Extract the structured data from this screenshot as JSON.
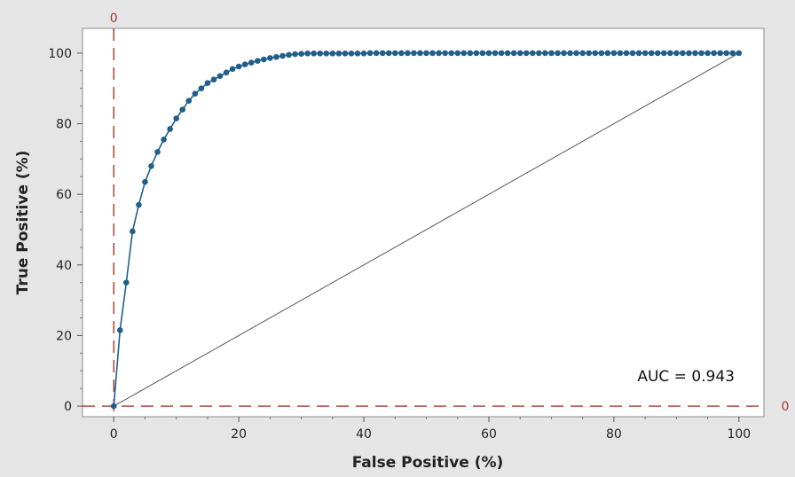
{
  "chart_data": {
    "type": "line",
    "title": "",
    "xlabel": "False Positive (%)",
    "ylabel": "True Positive (%)",
    "xlim": [
      -5,
      104
    ],
    "ylim": [
      -3,
      107
    ],
    "x_ticks": [
      0,
      20,
      40,
      60,
      80,
      100
    ],
    "y_ticks": [
      0,
      20,
      40,
      60,
      80,
      100
    ],
    "x_tick_labels": [
      "0",
      "20",
      "40",
      "60",
      "80",
      "100"
    ],
    "y_tick_labels": [
      "0",
      "20",
      "40",
      "60",
      "80",
      "100"
    ],
    "grid": false,
    "series": [
      {
        "color": "#1f5f8b",
        "style": "line+markers",
        "x": [
          0,
          1,
          2,
          3,
          4,
          5,
          6,
          7,
          8,
          9,
          10,
          11,
          12,
          13,
          14,
          15,
          16,
          17,
          18,
          19,
          20,
          21,
          22,
          23,
          24,
          25,
          26,
          27,
          28,
          29,
          30,
          31,
          32,
          33,
          34,
          35,
          36,
          37,
          38,
          39,
          40,
          41,
          42,
          43,
          44,
          45,
          46,
          47,
          48,
          49,
          50,
          51,
          52,
          53,
          54,
          55,
          56,
          57,
          58,
          59,
          60,
          61,
          62,
          63,
          64,
          65,
          66,
          67,
          68,
          69,
          70,
          71,
          72,
          73,
          74,
          75,
          76,
          77,
          78,
          79,
          80,
          81,
          82,
          83,
          84,
          85,
          86,
          87,
          88,
          89,
          90,
          91,
          92,
          93,
          94,
          95,
          96,
          97,
          98,
          99,
          100
        ],
        "y": [
          0,
          21.5,
          35,
          49.5,
          57,
          63.5,
          68,
          72,
          75.5,
          78.5,
          81.5,
          84,
          86.5,
          88.5,
          90,
          91.5,
          92.5,
          93.5,
          94.5,
          95.5,
          96.2,
          96.8,
          97.3,
          97.8,
          98.2,
          98.6,
          98.9,
          99.2,
          99.5,
          99.7,
          99.8,
          99.9,
          99.9,
          99.9,
          99.9,
          99.9,
          99.9,
          99.9,
          99.9,
          99.9,
          99.9,
          100,
          100,
          100,
          100,
          100,
          100,
          100,
          100,
          100,
          100,
          100,
          100,
          100,
          100,
          100,
          100,
          100,
          100,
          100,
          100,
          100,
          100,
          100,
          100,
          100,
          100,
          100,
          100,
          100,
          100,
          100,
          100,
          100,
          100,
          100,
          100,
          100,
          100,
          100,
          100,
          100,
          100,
          100,
          100,
          100,
          100,
          100,
          100,
          100,
          100,
          100,
          100,
          100,
          100,
          100,
          100,
          100,
          100,
          100,
          100
        ]
      }
    ],
    "diagonal": {
      "x": [
        0,
        100
      ],
      "y": [
        0,
        100
      ],
      "color": "#555555"
    },
    "reference_lines": [
      {
        "orientation": "vertical",
        "value": 0,
        "label": "0",
        "color": "#a33a2a"
      },
      {
        "orientation": "horizontal",
        "value": 0,
        "label": "0",
        "color": "#a33a2a"
      }
    ],
    "annotation": {
      "text": "AUC = 0.943"
    },
    "colors": {
      "background": "#e5e5e5",
      "plot_area": "#ffffff"
    }
  }
}
